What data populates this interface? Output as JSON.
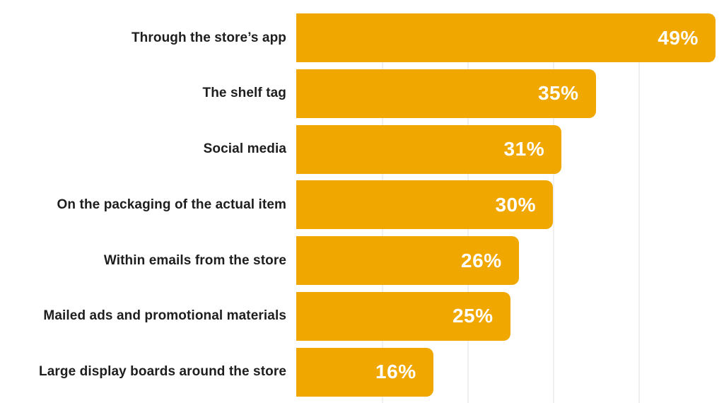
{
  "chart_data": {
    "type": "bar",
    "orientation": "horizontal",
    "title": "",
    "categories": [
      "Through the store’s app",
      "The shelf tag",
      "Social media",
      "On the packaging of the actual item",
      "Within emails from the store",
      "Mailed ads and promotional materials",
      "Large display boards around the store"
    ],
    "values": [
      49,
      35,
      31,
      30,
      26,
      25,
      16
    ],
    "value_labels": [
      "49%",
      "35%",
      "31%",
      "30%",
      "26%",
      "25%",
      "16%"
    ],
    "xlabel": "",
    "ylabel": "",
    "xlim": [
      0,
      50
    ],
    "gridline_values": [
      10,
      20,
      30,
      40
    ],
    "grid": true,
    "legend": false,
    "colors": {
      "bar": "#F0A800",
      "value_label": "#FFFFFF",
      "category_label": "#1E1E1E",
      "gridline": "#F0F0F0",
      "background": "#FFFFFF"
    }
  }
}
